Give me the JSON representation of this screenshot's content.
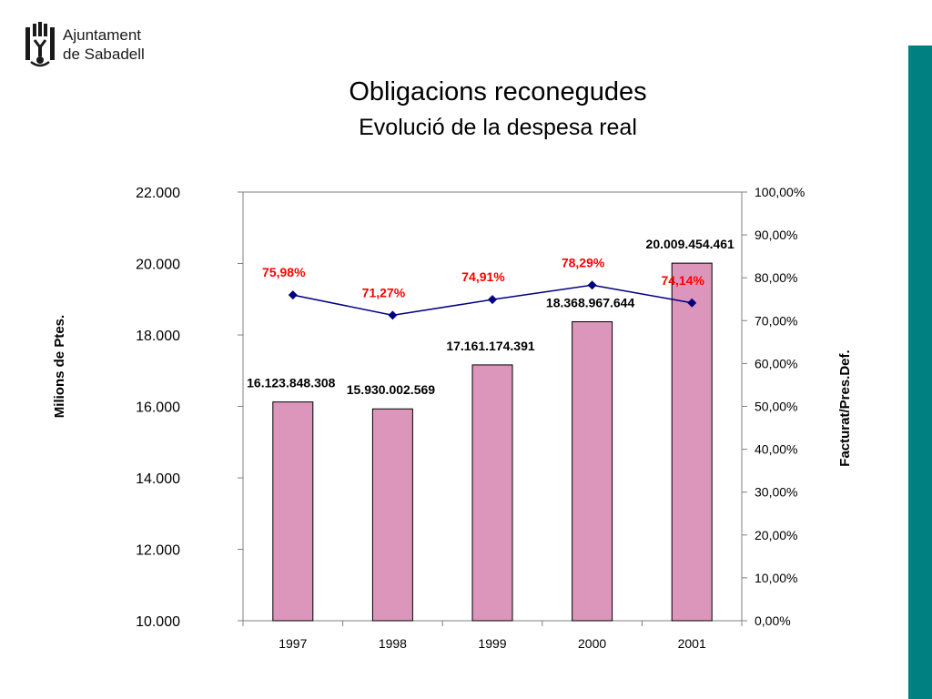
{
  "header": {
    "logo_line1": "Ajuntament",
    "logo_line2": "de Sabadell",
    "brand_color": "#008080"
  },
  "chart_data": {
    "type": "bar",
    "title": "Obligacions reconegudes",
    "subtitle": "Evolució de la despesa real",
    "categories": [
      "1997",
      "1998",
      "1999",
      "2000",
      "2001"
    ],
    "series": [
      {
        "axis": "left",
        "type": "bar",
        "values": [
          16123.848308,
          15930.002569,
          17161.174391,
          18368.967644,
          20009.454461
        ],
        "labels": [
          "16.123.848.308",
          "15.930.002.569",
          "17.161.174.391",
          "18.368.967.644",
          "20.009.454.461"
        ],
        "color": "#dd96bb"
      },
      {
        "axis": "right",
        "type": "line",
        "values": [
          75.98,
          71.27,
          74.91,
          78.29,
          74.14
        ],
        "labels": [
          "75,98%",
          "71,27%",
          "74,91%",
          "78,29%",
          "74,14%"
        ],
        "color": "#000080",
        "label_color": "#ff0000"
      }
    ],
    "ylabel": "Milions de Ptes.",
    "ylim": [
      10000,
      22000
    ],
    "yticks": [
      "10.000",
      "12.000",
      "14.000",
      "16.000",
      "18.000",
      "20.000",
      "22.000"
    ],
    "y2label": "Facturat/Pres.Def.",
    "y2lim": [
      0,
      100
    ],
    "y2ticks": [
      "0,00%",
      "10,00%",
      "20,00%",
      "30,00%",
      "40,00%",
      "50,00%",
      "60,00%",
      "70,00%",
      "80,00%",
      "90,00%",
      "100,00%"
    ],
    "grid": false,
    "legend": "none"
  }
}
